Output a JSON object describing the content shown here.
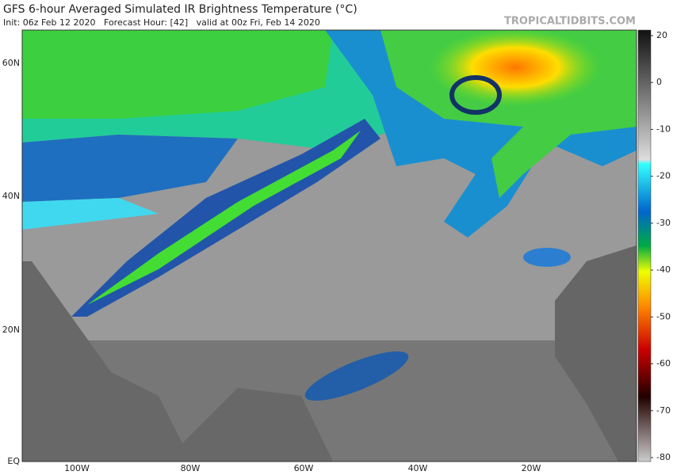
{
  "header": {
    "title": "GFS 6-hour Averaged Simulated IR Brightness Temperature (°C)",
    "subtitle": "Init: 06z Feb 12 2020   Forecast Hour: [42]   valid at 00z Fri, Feb 14 2020",
    "site": "TROPICALTIDBITS.COM"
  },
  "map": {
    "lat_labels": [
      "60N",
      "40N",
      "20N",
      "EQ"
    ],
    "lon_labels": [
      "100W",
      "80W",
      "60W",
      "40W",
      "20W"
    ]
  },
  "colorbar": {
    "ticks": [
      20,
      0,
      -10,
      -20,
      -30,
      -40,
      -50,
      -60,
      -70,
      -80
    ]
  }
}
